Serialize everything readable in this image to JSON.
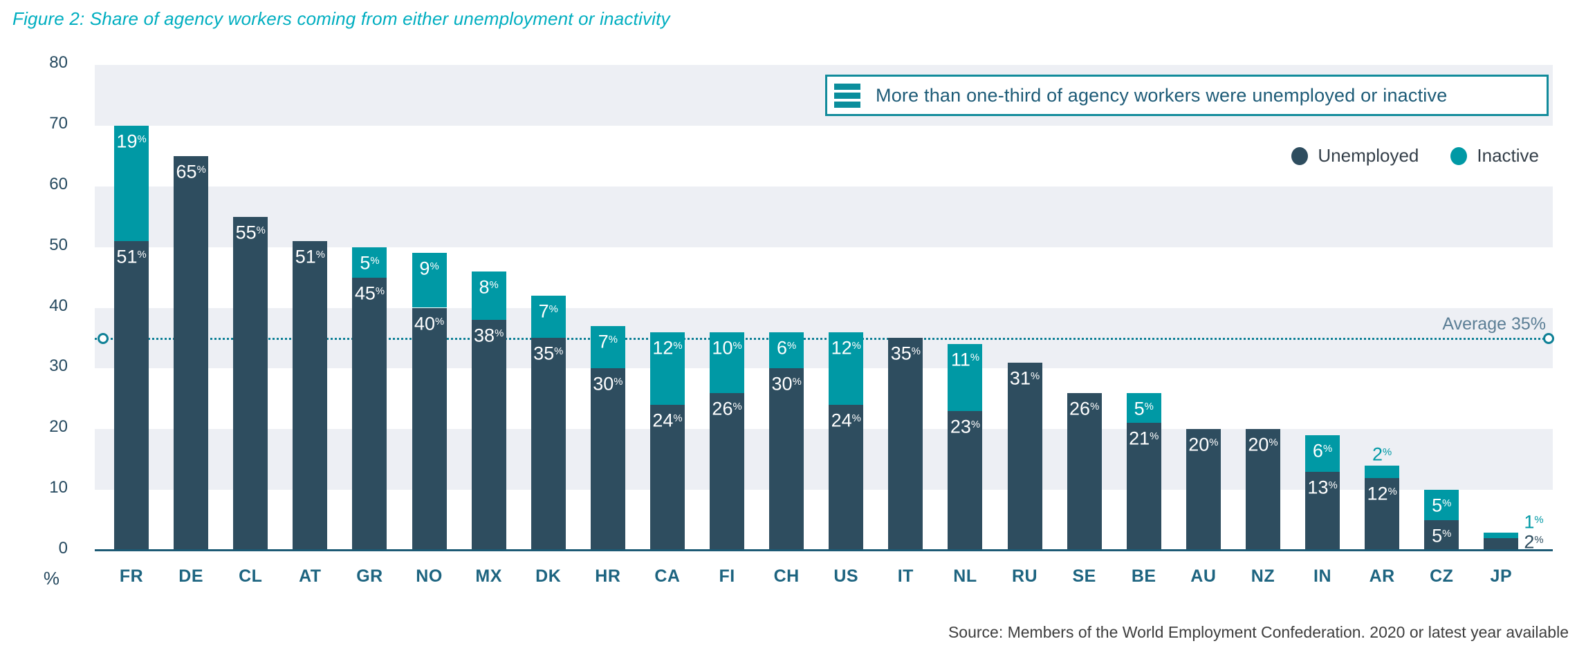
{
  "figure": {
    "title": "Figure 2: Share of agency workers coming from either unemployment or inactivity",
    "source": "Source: Members of the World Employment Confederation. 2020 or latest year available"
  },
  "callout": {
    "icon": "hamburger-icon",
    "text": "More than one-third of agency workers were unemployed or inactive"
  },
  "legend": {
    "position": "top-right",
    "items": [
      {
        "label": "Unemployed",
        "color": "#2e4d5f"
      },
      {
        "label": "Inactive",
        "color": "#0099a5"
      }
    ]
  },
  "average_line": {
    "label": "Average 35%",
    "value": 35,
    "style": "dotted"
  },
  "y_axis": {
    "ticks": [
      80,
      70,
      60,
      50,
      40,
      30,
      20,
      10,
      0
    ],
    "unit_label": "%",
    "max": 80,
    "shaded_bands": [
      [
        70,
        80
      ],
      [
        50,
        60
      ],
      [
        30,
        40
      ],
      [
        10,
        20
      ]
    ]
  },
  "palette": {
    "unemployed": "#2e4d5f",
    "inactive": "#0099a5",
    "title": "#00aec0",
    "band": "#edeff4",
    "baseline": "#1c5a74",
    "avg_line": "#0e8096",
    "avg_label": "#5b7e95",
    "y_axis_labels": "#24485e",
    "x_axis_labels": "#1d6480",
    "callout_border": "#118b9b",
    "callout_icon": "#0b8e9c",
    "callout_text": "#1d5b77",
    "legend_text": "#333e48",
    "source_text": "#3d3d3d"
  },
  "chart_data": {
    "type": "bar",
    "stacked": true,
    "title": "Share of agency workers coming from either unemployment or inactivity",
    "categories": [
      "FR",
      "DE",
      "CL",
      "AT",
      "GR",
      "NO",
      "MX",
      "DK",
      "HR",
      "CA",
      "FI",
      "CH",
      "US",
      "IT",
      "NL",
      "RU",
      "SE",
      "BE",
      "AU",
      "NZ",
      "IN",
      "AR",
      "CZ",
      "JP"
    ],
    "series": [
      {
        "name": "Unemployed",
        "color": "#2e4d5f",
        "values": [
          51,
          65,
          55,
          51,
          45,
          40,
          38,
          35,
          30,
          24,
          26,
          30,
          24,
          35,
          23,
          31,
          26,
          21,
          20,
          20,
          13,
          12,
          5,
          2
        ]
      },
      {
        "name": "Inactive",
        "color": "#0099a5",
        "values": [
          19,
          0,
          0,
          0,
          5,
          9,
          8,
          7,
          7,
          12,
          10,
          6,
          12,
          0,
          11,
          0,
          0,
          5,
          0,
          0,
          6,
          2,
          5,
          1
        ]
      }
    ],
    "data_label_unit": "%",
    "label_overrides": {
      "AR": {
        "inactive": "above"
      },
      "JP": {
        "unemployed": "right",
        "inactive": "right"
      }
    },
    "average": 35,
    "ylim": [
      0,
      80
    ],
    "grid": "alternating-horizontal-bands",
    "legend_position": "top-right"
  }
}
